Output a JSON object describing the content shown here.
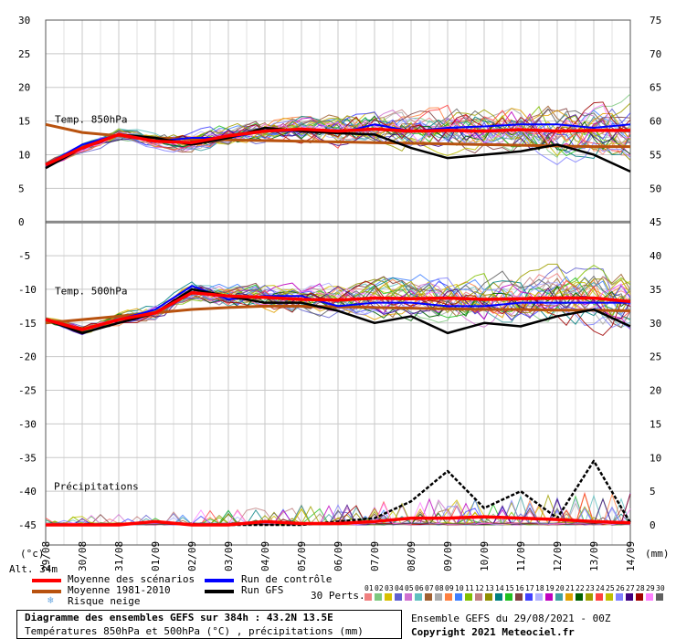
{
  "header": {
    "alt_label": "Alt. 34",
    "alt_suffix": "m",
    "unit_left": "(°c)",
    "unit_right": "(mm)"
  },
  "panels": {
    "t850_title": "Temp. 850hPa",
    "t500_title": "Temp. 500hPa",
    "precip_title": "Précipitations"
  },
  "legend": {
    "mean_scenarios": "Moyenne des scénarios",
    "mean_1981_2010": "Moyenne 1981-2010",
    "snow_risk": "Risque neige",
    "control_run": "Run de contrôle",
    "gfs_run": "Run GFS",
    "perts_label": "30 Perts.",
    "colors": {
      "mean_scenarios": "#ff0000",
      "mean_1981_2010": "#b8520f",
      "control_run": "#0000ff",
      "gfs_run": "#000000",
      "snow": "#6aa7e0"
    }
  },
  "perturbations": {
    "numbers": [
      "01",
      "02",
      "03",
      "04",
      "05",
      "06",
      "07",
      "08",
      "09",
      "10",
      "11",
      "12",
      "13",
      "14",
      "15",
      "16",
      "17",
      "18",
      "19",
      "20",
      "21",
      "22",
      "23",
      "24",
      "25",
      "26",
      "27",
      "28",
      "29",
      "30"
    ],
    "colors": [
      "#f08080",
      "#7ec87e",
      "#d8c000",
      "#6060d0",
      "#d070d0",
      "#60c0c0",
      "#a06030",
      "#aaaaaa",
      "#ff8040",
      "#4080ff",
      "#80c000",
      "#c08080",
      "#909000",
      "#008080",
      "#20c020",
      "#804040",
      "#4040ff",
      "#b0b0ff",
      "#c000c0",
      "#40a0a0",
      "#e0a000",
      "#006000",
      "#a0a000",
      "#ff4040",
      "#c0c000",
      "#8080ff",
      "#400080",
      "#a00000",
      "#ff80ff",
      "#606060"
    ]
  },
  "footer": {
    "title": "Diagramme des ensembles GEFS sur 384h : 43.2N 13.5E",
    "subtitle": "Températures 850hPa et 500hPa (°C) , précipitations (mm)",
    "ensemble": "Ensemble GEFS du 29/08/2021 - 00Z",
    "copyright": "Copyright 2021 Meteociel.fr"
  },
  "chart_data": {
    "type": "line",
    "x": [
      "29/08",
      "30/08",
      "31/08",
      "01/09",
      "02/09",
      "03/09",
      "04/09",
      "05/09",
      "06/09",
      "07/09",
      "08/09",
      "09/09",
      "10/09",
      "11/09",
      "12/09",
      "13/09",
      "14/09"
    ],
    "x_labels": [
      "29/08",
      "30/08",
      "31/08",
      "01/09",
      "02/09",
      "03/09",
      "04/09",
      "05/09",
      "06/09",
      "07/09",
      "08/09",
      "09/09",
      "10/09",
      "11/09",
      "12/09",
      "13/09",
      "14/09"
    ],
    "y_left_ticks": [
      30,
      25,
      20,
      15,
      10,
      5,
      0,
      -5,
      -10,
      -15,
      -20,
      -25,
      -30,
      -35,
      -40,
      -45
    ],
    "y_right_ticks": [
      75,
      70,
      65,
      60,
      55,
      50,
      45,
      40,
      35,
      30,
      25,
      20,
      15,
      10,
      5,
      0
    ],
    "ylim_left": [
      -45,
      30
    ],
    "grid": true,
    "series": [
      {
        "name": "Moyenne des scénarios",
        "panel": "850hPa",
        "values": [
          8.5,
          11,
          13,
          12,
          11.8,
          12.8,
          13.5,
          13.8,
          13.5,
          13.8,
          13.5,
          13.6,
          13.5,
          13.7,
          13.5,
          13.6,
          13.6
        ]
      },
      {
        "name": "Moyenne 1981-2010",
        "panel": "850hPa",
        "values": [
          14.5,
          13.3,
          12.8,
          12.5,
          12.3,
          12.2,
          12.1,
          12,
          11.9,
          11.8,
          11.7,
          11.6,
          11.5,
          11.4,
          11.3,
          11.2,
          11.2
        ]
      },
      {
        "name": "Run de contrôle",
        "panel": "850hPa",
        "values": [
          8.5,
          11.5,
          13,
          12,
          12.5,
          12.5,
          13.5,
          13.5,
          13.2,
          14.5,
          13.5,
          14,
          14.2,
          14.5,
          14.5,
          14,
          14.5
        ]
      },
      {
        "name": "Run GFS",
        "panel": "850hPa",
        "values": [
          8,
          11,
          13,
          12.5,
          11.5,
          12.5,
          14,
          13.5,
          13.2,
          13,
          11,
          9.5,
          10,
          10.5,
          11.5,
          10,
          7.5
        ]
      },
      {
        "name": "Moyenne des scénarios",
        "panel": "500hPa",
        "values": [
          -14.5,
          -16,
          -14.5,
          -13.5,
          -10.5,
          -11,
          -11.2,
          -11.5,
          -11.6,
          -11.3,
          -11.4,
          -11.3,
          -11.5,
          -11.4,
          -11.3,
          -11.3,
          -11.8
        ]
      },
      {
        "name": "Moyenne 1981-2010",
        "panel": "500hPa",
        "values": [
          -15,
          -14.5,
          -14,
          -13.5,
          -13,
          -12.7,
          -12.5,
          -12.5,
          -12.6,
          -12.7,
          -12.8,
          -12.9,
          -13,
          -13,
          -13.1,
          -13.1,
          -13.2
        ]
      },
      {
        "name": "Run de contrôle",
        "panel": "500hPa",
        "values": [
          -14.5,
          -16,
          -14.5,
          -13,
          -9.5,
          -11.5,
          -11,
          -11,
          -12.5,
          -12,
          -12,
          -12.5,
          -12.5,
          -12,
          -12,
          -12,
          -12
        ]
      },
      {
        "name": "Run GFS",
        "panel": "500hPa",
        "values": [
          -14.5,
          -16.5,
          -15,
          -13.5,
          -10,
          -11,
          -12,
          -12,
          -13.2,
          -15,
          -14,
          -16.5,
          -15,
          -15.5,
          -14,
          -13,
          -15.5
        ]
      },
      {
        "name": "Moyenne des scénarios",
        "panel": "precip",
        "values": [
          0,
          0,
          0,
          0.5,
          0,
          0,
          0.5,
          0.2,
          0.2,
          0.5,
          1,
          1,
          1.2,
          1,
          0.8,
          0.5,
          0.3
        ]
      },
      {
        "name": "Run GFS",
        "panel": "precip",
        "values": [
          0,
          0,
          0,
          0.5,
          0,
          0,
          0,
          0,
          0.5,
          1,
          3.5,
          8,
          2.5,
          5,
          1,
          9.5,
          0.3
        ]
      }
    ]
  }
}
